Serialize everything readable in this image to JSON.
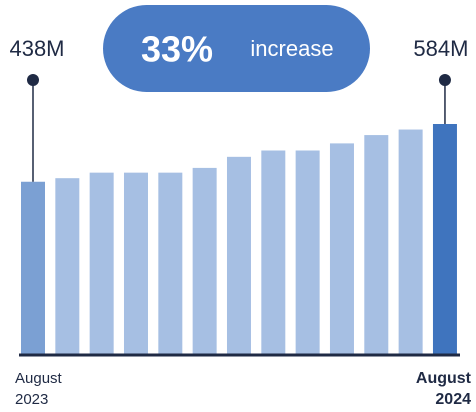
{
  "chart_data": {
    "type": "bar",
    "headline": {
      "value_label": "33%",
      "text": "increase"
    },
    "categories": [
      "August 2023",
      null,
      null,
      null,
      null,
      null,
      null,
      null,
      null,
      null,
      null,
      null,
      "August 2024"
    ],
    "values": [
      438,
      447,
      461,
      461,
      461,
      473,
      501,
      517,
      517,
      535,
      556,
      570,
      584
    ],
    "value_labels": [
      "438M",
      null,
      null,
      null,
      null,
      null,
      null,
      null,
      null,
      null,
      null,
      null,
      "584M"
    ],
    "colors": [
      "#7ba0d3",
      "#a6bfe3",
      "#a6bfe3",
      "#a6bfe3",
      "#a6bfe3",
      "#a6bfe3",
      "#a6bfe3",
      "#a6bfe3",
      "#a6bfe3",
      "#a6bfe3",
      "#a6bfe3",
      "#a6bfe3",
      "#3f74be"
    ]
  }
}
